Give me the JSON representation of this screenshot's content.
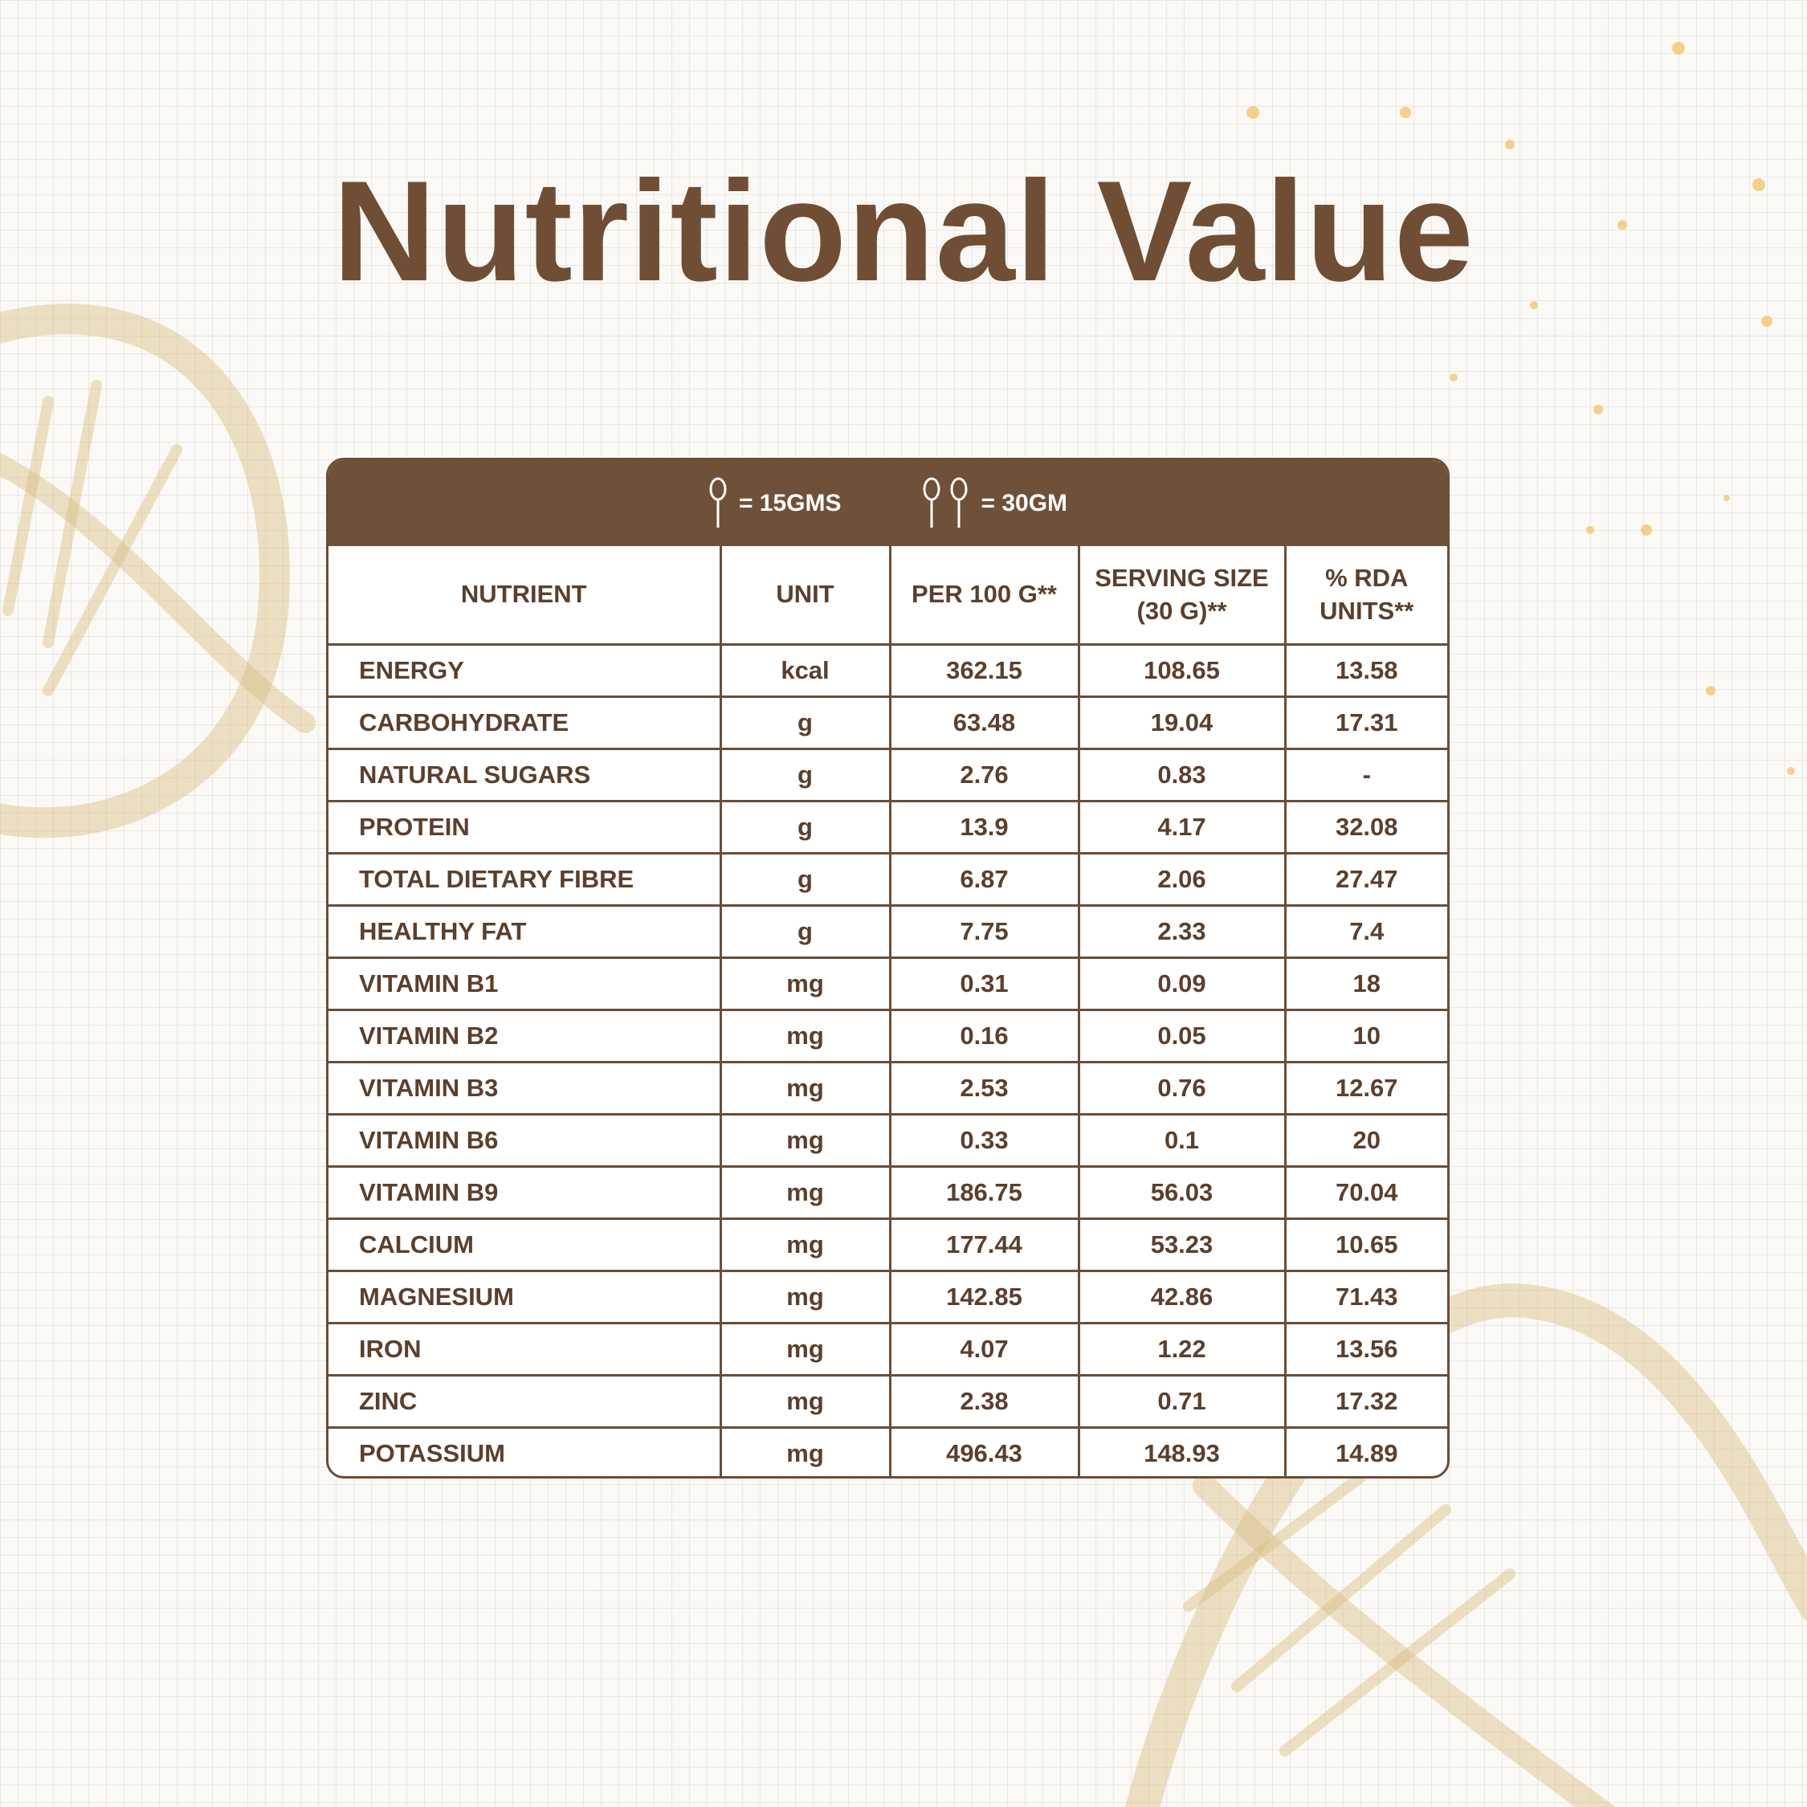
{
  "header": {
    "title": "Nutritional Value"
  },
  "serving": {
    "items": [
      {
        "label": "= 15GMS"
      },
      {
        "label": "= 30GM"
      }
    ]
  },
  "table": {
    "columns": [
      "NUTRIENT",
      "UNIT",
      "PER 100 G**",
      "SERVING SIZE (30 G)**",
      "% RDA UNITS**"
    ],
    "rows": [
      [
        "ENERGY",
        "kcal",
        "362.15",
        "108.65",
        "13.58"
      ],
      [
        "CARBOHYDRATE",
        "g",
        "63.48",
        "19.04",
        "17.31"
      ],
      [
        "NATURAL SUGARS",
        "g",
        "2.76",
        "0.83",
        "-"
      ],
      [
        "PROTEIN",
        "g",
        "13.9",
        "4.17",
        "32.08"
      ],
      [
        "TOTAL DIETARY FIBRE",
        "g",
        "6.87",
        "2.06",
        "27.47"
      ],
      [
        "HEALTHY FAT",
        "g",
        "7.75",
        "2.33",
        "7.4"
      ],
      [
        "VITAMIN B1",
        "mg",
        "0.31",
        "0.09",
        "18"
      ],
      [
        "VITAMIN B2",
        "mg",
        "0.16",
        "0.05",
        "10"
      ],
      [
        "VITAMIN B3",
        "mg",
        "2.53",
        "0.76",
        "12.67"
      ],
      [
        "VITAMIN B6",
        "mg",
        "0.33",
        "0.1",
        "20"
      ],
      [
        "VITAMIN B9",
        "mg",
        "186.75",
        "56.03",
        "70.04"
      ],
      [
        "CALCIUM",
        "mg",
        "177.44",
        "53.23",
        "10.65"
      ],
      [
        "MAGNESIUM",
        "mg",
        "142.85",
        "42.86",
        "71.43"
      ],
      [
        "IRON",
        "mg",
        "4.07",
        "1.22",
        "13.56"
      ],
      [
        "ZINC",
        "mg",
        "2.38",
        "0.71",
        "17.32"
      ],
      [
        "POTASSIUM",
        "mg",
        "496.43",
        "148.93",
        "14.89"
      ]
    ]
  }
}
